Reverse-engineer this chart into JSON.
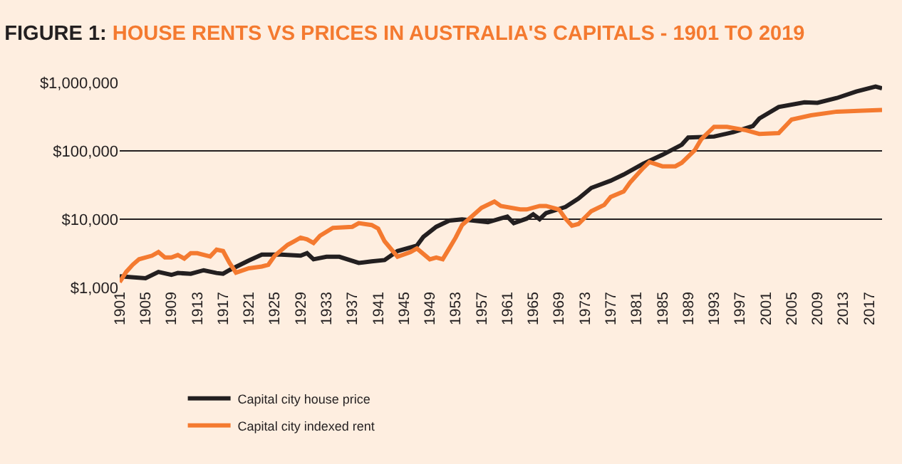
{
  "chart_data": {
    "type": "line",
    "title": "FIGURE 1: HOUSE RENTS VS PRICES IN AUSTRALIA'S CAPITALS - 1901 TO 2019",
    "series": [
      {
        "name": "Capital city house price",
        "color": "#231f20",
        "x": [
          1901,
          1905,
          1907,
          1909,
          1910,
          1912,
          1914,
          1916,
          1917,
          1918,
          1921,
          1923,
          1926,
          1929,
          1930,
          1931,
          1933,
          1935,
          1938,
          1940,
          1942,
          1944,
          1947,
          1948,
          1950,
          1952,
          1954,
          1958,
          1960,
          1961,
          1962,
          1964,
          1965,
          1966,
          1967,
          1970,
          1972,
          1974,
          1977,
          1979,
          1982,
          1985,
          1988,
          1989,
          1993,
          1996,
          1999,
          2000,
          2003,
          2007,
          2009,
          2012,
          2015,
          2018,
          2019
        ],
        "values": [
          1460,
          1370,
          1690,
          1530,
          1630,
          1590,
          1790,
          1630,
          1590,
          1800,
          2490,
          3030,
          3030,
          2920,
          3180,
          2590,
          2820,
          2820,
          2290,
          2410,
          2520,
          3420,
          4110,
          5500,
          7740,
          9530,
          9920,
          9020,
          10250,
          10900,
          8750,
          10200,
          11800,
          10000,
          12300,
          15100,
          20000,
          28700,
          36600,
          45000,
          64700,
          87500,
          123000,
          157000,
          162000,
          188000,
          231000,
          298000,
          439000,
          513000,
          505000,
          594000,
          739000,
          875000,
          824000
        ]
      },
      {
        "name": "Capital city indexed rent",
        "color": "#f47a30",
        "x": [
          1901,
          1902,
          1903,
          1904,
          1906,
          1907,
          1908,
          1909,
          1910,
          1911,
          1912,
          1913,
          1915,
          1916,
          1917,
          1918,
          1919,
          1921,
          1923,
          1924,
          1925,
          1927,
          1928,
          1929,
          1930,
          1931,
          1932,
          1934,
          1935,
          1937,
          1938,
          1940,
          1941,
          1942,
          1944,
          1946,
          1947,
          1949,
          1950,
          1951,
          1952,
          1953,
          1954,
          1957,
          1959,
          1960,
          1963,
          1964,
          1966,
          1967,
          1969,
          1970,
          1971,
          1972,
          1974,
          1976,
          1977,
          1979,
          1980,
          1982,
          1983,
          1985,
          1987,
          1988,
          1990,
          1991,
          1993,
          1995,
          1998,
          2000,
          2003,
          2005,
          2008,
          2012,
          2016,
          2019
        ],
        "values": [
          1200,
          1690,
          2150,
          2590,
          2920,
          3300,
          2750,
          2750,
          2990,
          2650,
          3180,
          3180,
          2850,
          3590,
          3420,
          2290,
          1650,
          1910,
          2030,
          2150,
          2920,
          4210,
          4750,
          5370,
          5060,
          4480,
          5720,
          7470,
          7560,
          7740,
          8750,
          8220,
          7280,
          4750,
          2820,
          3300,
          3730,
          2590,
          2750,
          2590,
          3730,
          5370,
          8220,
          14700,
          18100,
          15600,
          13900,
          13900,
          15600,
          15600,
          13900,
          10200,
          8040,
          8500,
          13100,
          16200,
          21200,
          25400,
          34400,
          55900,
          68700,
          59400,
          59400,
          67000,
          102000,
          147000,
          225000,
          225000,
          200000,
          177000,
          182000,
          287000,
          332000,
          375000,
          388000,
          398000
        ]
      }
    ],
    "xlim": [
      1901,
      2019
    ],
    "xticks": [
      1901,
      1905,
      1909,
      1913,
      1917,
      1921,
      1925,
      1929,
      1933,
      1937,
      1941,
      1945,
      1949,
      1953,
      1957,
      1961,
      1965,
      1969,
      1973,
      1977,
      1981,
      1985,
      1989,
      1993,
      1997,
      2001,
      2005,
      2009,
      2013,
      2017
    ],
    "ylim": [
      1000,
      1000000
    ],
    "yticks": [
      {
        "value": 1000,
        "label": "$1,000"
      },
      {
        "value": 10000,
        "label": "$10,000"
      },
      {
        "value": 100000,
        "label": "$100,000"
      },
      {
        "value": 1000000,
        "label": "$1,000,000"
      }
    ],
    "log": "y",
    "grid": "y",
    "legend": "bottom",
    "marker": "none",
    "line_style": "solid"
  }
}
